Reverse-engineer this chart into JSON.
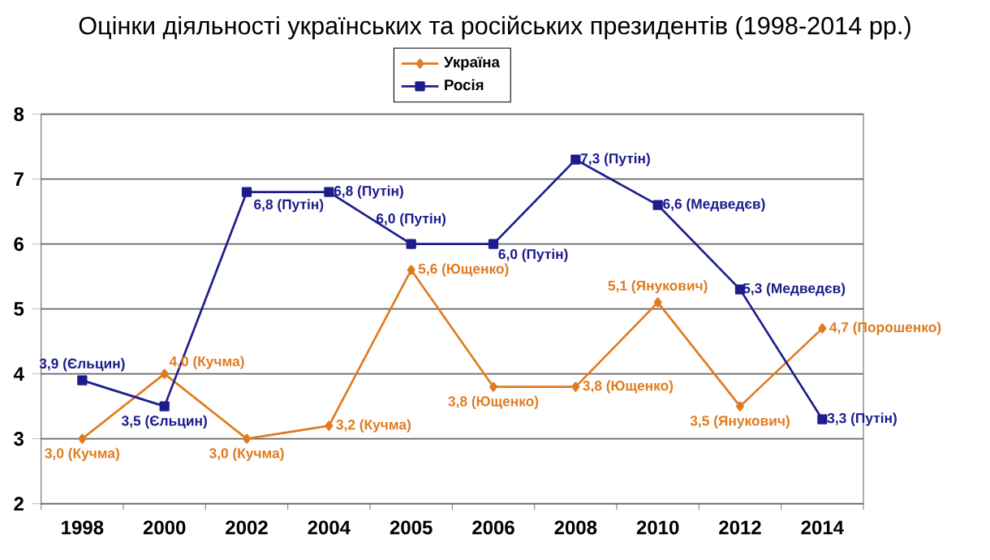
{
  "chart_data": {
    "type": "line",
    "title": "Оцінки діяльності українських та російських президентів (1998-2014 рр.)",
    "categories": [
      "1998",
      "2000",
      "2002",
      "2004",
      "2005",
      "2006",
      "2008",
      "2010",
      "2012",
      "2014"
    ],
    "series": [
      {
        "name": "Україна",
        "color": "#e07b20",
        "marker": "diamond",
        "values": [
          3.0,
          4.0,
          3.0,
          3.2,
          5.6,
          3.8,
          3.8,
          5.1,
          3.5,
          4.7
        ],
        "value_labels": [
          "3,0 (Кучма)",
          "4,0 (Кучма)",
          "3,0 (Кучма)",
          "3,2 (Кучма)",
          "5,6 (Ющенко)",
          "3,8 (Ющенко)",
          "3,8 (Ющенко)",
          "5,1 (Янукович)",
          "3,5 (Янукович)",
          "4,7 (Порошенко)"
        ]
      },
      {
        "name": "Росія",
        "color": "#1c1c8c",
        "marker": "square",
        "values": [
          3.9,
          3.5,
          6.8,
          6.8,
          6.0,
          6.0,
          7.3,
          6.6,
          5.3,
          3.3
        ],
        "value_labels": [
          "3,9 (Єльцин)",
          "3,5 (Єльцин)",
          "6,8 (Путін)",
          "6,8 (Путін)",
          "6,0 (Путін)",
          "6,0 (Путін)",
          "7,3 (Путін)",
          "6,6 (Медведєв)",
          "5,3 (Медведєв)",
          "3,3 (Путін)"
        ]
      }
    ],
    "ylim": [
      2,
      8
    ],
    "yticks": [
      2,
      3,
      4,
      5,
      6,
      7,
      8
    ],
    "grid": "y",
    "legend": "top",
    "line_style": "solid"
  }
}
